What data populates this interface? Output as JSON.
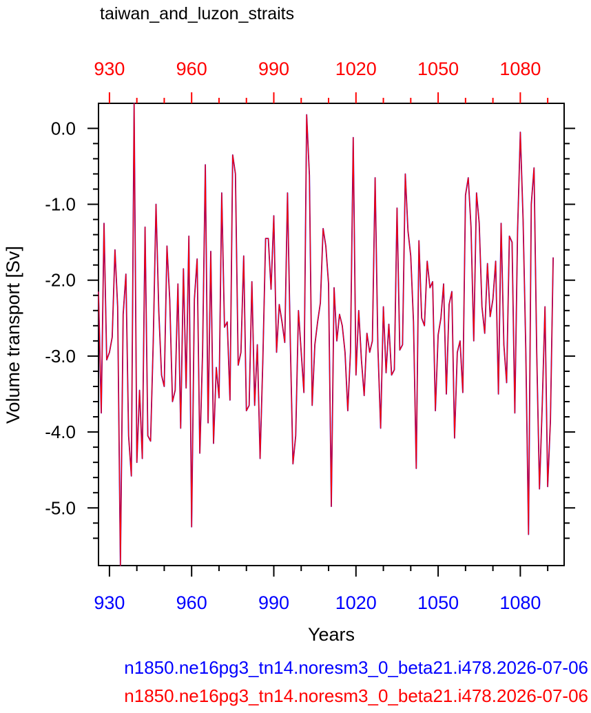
{
  "chart_data": {
    "type": "line",
    "title": "taiwan_and_luzon_straits",
    "xlabel": "Years",
    "ylabel": "Volume transport [Sv]",
    "xlim": [
      926,
      1096
    ],
    "ylim": [
      -5.76,
      0.33
    ],
    "x_ticks": [
      930,
      960,
      990,
      1020,
      1050,
      1080
    ],
    "x_tick_labels": [
      "930",
      "960",
      "990",
      "1020",
      "1050",
      "1080"
    ],
    "y_ticks": [
      0,
      -1,
      -2,
      -3,
      -4,
      -5
    ],
    "y_tick_labels": [
      "0.0",
      "-1.0",
      "-2.0",
      "-3.0",
      "-4.0",
      "-5.0"
    ],
    "colors": {
      "bottom_axis": "#0000ff",
      "top_axis": "#ff0000",
      "series_bottom": "#0000ff",
      "series_top": "#ff0000"
    },
    "x_start": 926,
    "series": [
      {
        "name": "n1850.ne16pg3_tn14.noresm3_0_beta21.i478.2026-07-06",
        "color": "#0000ff",
        "values": [
          -2.15,
          -3.75,
          -1.25,
          -3.05,
          -2.95,
          -2.75,
          -1.6,
          -2.35,
          -5.76,
          -2.45,
          -1.92,
          -4.05,
          -4.58,
          0.33,
          -4.4,
          -3.45,
          -4.35,
          -1.3,
          -4.05,
          -4.12,
          -2.8,
          -1.0,
          -2.4,
          -3.25,
          -3.4,
          -1.55,
          -2.25,
          -3.6,
          -3.45,
          -2.05,
          -3.95,
          -1.85,
          -3.42,
          -1.42,
          -5.25,
          -2.25,
          -1.72,
          -4.28,
          -2.95,
          -0.48,
          -3.88,
          -1.62,
          -4.15,
          -3.15,
          -3.55,
          -0.85,
          -2.62,
          -2.55,
          -3.58,
          -0.35,
          -0.6,
          -3.12,
          -2.95,
          -1.68,
          -3.72,
          -3.65,
          -2.02,
          -3.65,
          -2.85,
          -4.35,
          -3.05,
          -1.45,
          -1.45,
          -2.12,
          -1.15,
          -2.95,
          -2.32,
          -2.55,
          -2.82,
          -0.85,
          -2.78,
          -4.42,
          -4.05,
          -2.4,
          -2.95,
          -3.48,
          0.18,
          -0.62,
          -3.65,
          -2.85,
          -2.55,
          -2.3,
          -1.32,
          -1.55,
          -2.05,
          -4.98,
          -2.1,
          -2.8,
          -2.45,
          -2.6,
          -2.95,
          -3.72,
          -2.95,
          -0.12,
          -3.25,
          -2.4,
          -3.05,
          -3.52,
          -2.7,
          -2.95,
          -2.8,
          -0.65,
          -2.88,
          -3.95,
          -2.35,
          -3.22,
          -2.58,
          -3.25,
          -3.18,
          -1.05,
          -2.92,
          -2.85,
          -0.6,
          -1.35,
          -1.68,
          -2.55,
          -4.48,
          -1.48,
          -2.5,
          -2.6,
          -1.75,
          -2.1,
          -2.02,
          -3.72,
          -2.72,
          -2.5,
          -2.05,
          -3.5,
          -2.32,
          -2.15,
          -4.08,
          -2.95,
          -2.8,
          -3.48,
          -0.88,
          -0.65,
          -1.3,
          -2.8,
          -0.85,
          -1.25,
          -2.35,
          -2.7,
          -1.78,
          -2.48,
          -2.25,
          -1.75,
          -3.5,
          -1.25,
          -2.85,
          -3.35,
          -1.42,
          -1.5,
          -3.75,
          -1.35,
          -0.05,
          -1.2,
          -2.9,
          -5.35,
          -1.0,
          -0.52,
          -2.95,
          -4.75,
          -3.65,
          -2.35,
          -4.72,
          -3.85,
          -1.7
        ]
      },
      {
        "name": "n1850.ne16pg3_tn14.noresm3_0_beta21.i478.2026-07-06",
        "color": "#ff0000",
        "same_as": 0
      }
    ]
  }
}
